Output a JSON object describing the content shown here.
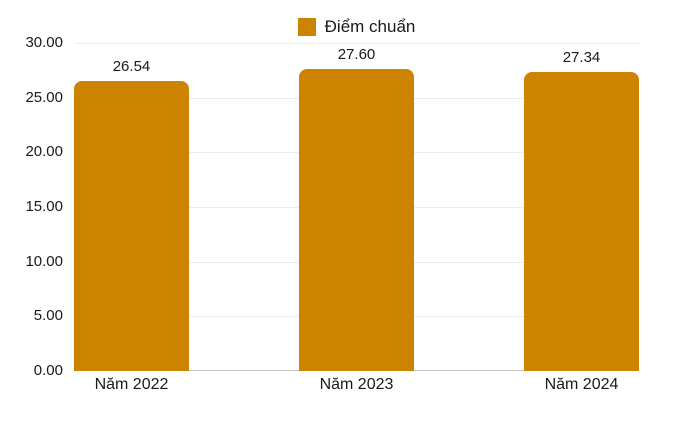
{
  "chart_data": {
    "type": "bar",
    "title": "",
    "categories": [
      "Năm 2022",
      "Năm 2023",
      "Năm 2024"
    ],
    "series": [
      {
        "name": "Điểm chuẩn",
        "values": [
          26.54,
          27.6,
          27.34
        ],
        "value_labels": [
          "26.54",
          "27.60",
          "27.34"
        ],
        "color": "#CC8400"
      }
    ],
    "xlabel": "",
    "ylabel": "",
    "ylim": [
      0,
      30
    ],
    "ytick_step": 5,
    "ytick_labels": [
      "0.00",
      "5.00",
      "10.00",
      "15.00",
      "20.00",
      "25.00",
      "30.00"
    ],
    "grid": "horizontal",
    "legend_position": "top-center",
    "colors": {
      "bar": "#CC8400",
      "gridline": "#ECECEC",
      "axis_line": "#C6C6C6",
      "text": "#1A1A1A",
      "background": "#FFFFFF"
    }
  }
}
